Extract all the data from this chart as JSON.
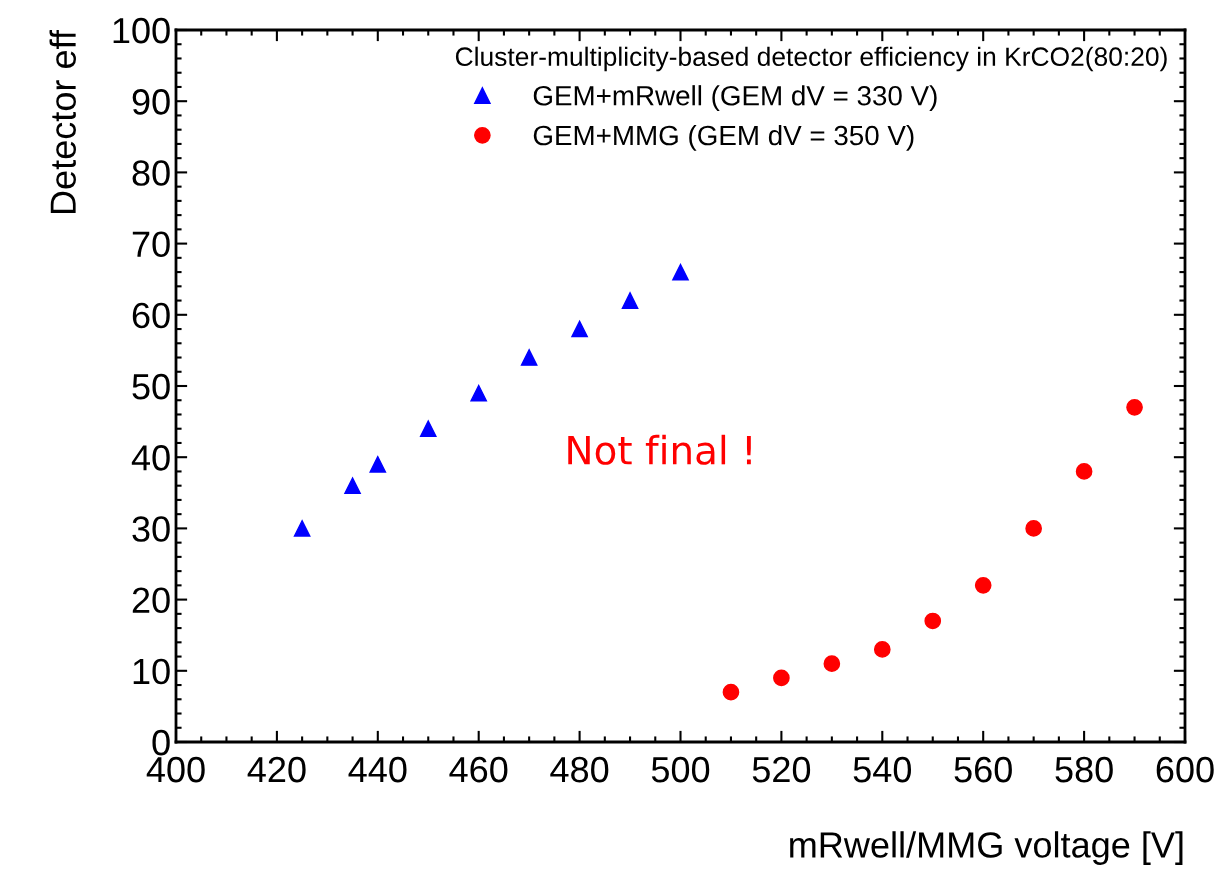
{
  "chart_data": {
    "type": "scatter",
    "xlabel": "mRwell/MMG voltage [V]",
    "ylabel": "Detector eff",
    "legend_title": "Cluster-multiplicity-based detector efficiency in KrCO2(80:20)",
    "legend": "top right",
    "grid": false,
    "xlim": [
      400,
      600
    ],
    "xticks": [
      400,
      {
        "value": 405,
        "label": null
      },
      {
        "value": 410,
        "label": null
      },
      {
        "value": 415,
        "label": null
      },
      420,
      {
        "value": 425,
        "label": null
      },
      {
        "value": 430,
        "label": null
      },
      {
        "value": 435,
        "label": null
      },
      440,
      {
        "value": 445,
        "label": null
      },
      {
        "value": 450,
        "label": null
      },
      {
        "value": 455,
        "label": null
      },
      460,
      {
        "value": 465,
        "label": null
      },
      {
        "value": 470,
        "label": null
      },
      {
        "value": 475,
        "label": null
      },
      480,
      {
        "value": 485,
        "label": null
      },
      {
        "value": 490,
        "label": null
      },
      {
        "value": 495,
        "label": null
      },
      500,
      {
        "value": 505,
        "label": null
      },
      {
        "value": 510,
        "label": null
      },
      {
        "value": 515,
        "label": null
      },
      520,
      {
        "value": 525,
        "label": null
      },
      {
        "value": 530,
        "label": null
      },
      {
        "value": 535,
        "label": null
      },
      540,
      {
        "value": 545,
        "label": null
      },
      {
        "value": 550,
        "label": null
      },
      {
        "value": 555,
        "label": null
      },
      560,
      {
        "value": 565,
        "label": null
      },
      {
        "value": 570,
        "label": null
      },
      {
        "value": 575,
        "label": null
      },
      580,
      {
        "value": 585,
        "label": null
      },
      {
        "value": 590,
        "label": null
      },
      {
        "value": 595,
        "label": null
      },
      600
    ],
    "ylim": [
      0,
      100
    ],
    "yticks": [
      0,
      {
        "value": 2,
        "label": null
      },
      {
        "value": 4,
        "label": null
      },
      {
        "value": 6,
        "label": null
      },
      {
        "value": 8,
        "label": null
      },
      10,
      {
        "value": 12,
        "label": null
      },
      {
        "value": 14,
        "label": null
      },
      {
        "value": 16,
        "label": null
      },
      {
        "value": 18,
        "label": null
      },
      20,
      {
        "value": 22,
        "label": null
      },
      {
        "value": 24,
        "label": null
      },
      {
        "value": 26,
        "label": null
      },
      {
        "value": 28,
        "label": null
      },
      30,
      {
        "value": 32,
        "label": null
      },
      {
        "value": 34,
        "label": null
      },
      {
        "value": 36,
        "label": null
      },
      {
        "value": 38,
        "label": null
      },
      40,
      {
        "value": 42,
        "label": null
      },
      {
        "value": 44,
        "label": null
      },
      {
        "value": 46,
        "label": null
      },
      {
        "value": 48,
        "label": null
      },
      50,
      {
        "value": 52,
        "label": null
      },
      {
        "value": 54,
        "label": null
      },
      {
        "value": 56,
        "label": null
      },
      {
        "value": 58,
        "label": null
      },
      60,
      {
        "value": 62,
        "label": null
      },
      {
        "value": 64,
        "label": null
      },
      {
        "value": 66,
        "label": null
      },
      {
        "value": 68,
        "label": null
      },
      70,
      {
        "value": 72,
        "label": null
      },
      {
        "value": 74,
        "label": null
      },
      {
        "value": 76,
        "label": null
      },
      {
        "value": 78,
        "label": null
      },
      80,
      {
        "value": 82,
        "label": null
      },
      {
        "value": 84,
        "label": null
      },
      {
        "value": 86,
        "label": null
      },
      {
        "value": 88,
        "label": null
      },
      90,
      {
        "value": 92,
        "label": null
      },
      {
        "value": 94,
        "label": null
      },
      {
        "value": 96,
        "label": null
      },
      {
        "value": 98,
        "label": null
      },
      100
    ],
    "annotations": [
      "Not final !"
    ],
    "series": [
      {
        "name": "GEM+mRwell (GEM dV = 330 V)",
        "color": "#0000ff",
        "marker": "triangle",
        "x": [
          425,
          435,
          440,
          450,
          460,
          470,
          480,
          490,
          500
        ],
        "values": [
          30,
          36,
          39,
          44,
          49,
          54,
          58,
          62,
          66
        ]
      },
      {
        "name": "GEM+MMG (GEM dV = 350 V)",
        "color": "#ff0000",
        "marker": "circle",
        "x": [
          510,
          520,
          530,
          540,
          550,
          560,
          570,
          580,
          590
        ],
        "values": [
          7,
          9,
          11,
          13,
          17,
          22,
          30,
          38,
          47
        ]
      }
    ]
  }
}
